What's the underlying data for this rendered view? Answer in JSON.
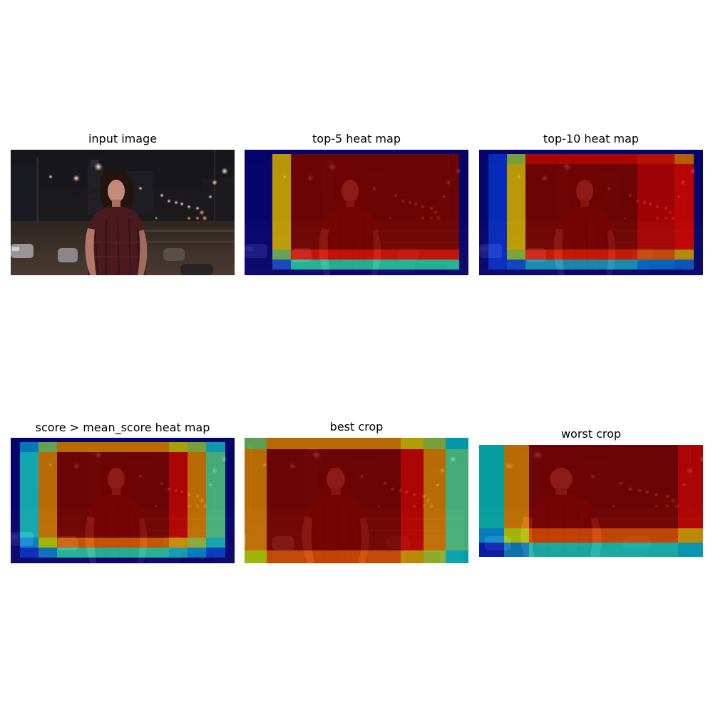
{
  "panels": [
    {
      "title": "input image"
    },
    {
      "title": "top-5 heat map"
    },
    {
      "title": "top-10 heat map"
    },
    {
      "title": "score > mean_score heat map"
    },
    {
      "title": "best crop"
    },
    {
      "title": "worst crop"
    }
  ],
  "colors": {
    "dark_red": "#800000",
    "red": "#e00000",
    "orange_red": "#e04a00",
    "orange": "#e08a00",
    "gold": "#e0c000",
    "yellow_green": "#b8d400",
    "green": "#80c060",
    "teal": "#20d0b0",
    "cyan": "#00c0d0",
    "light_blue": "#0090e0",
    "blue": "#0040e0",
    "dark_blue": "#00007f"
  }
}
